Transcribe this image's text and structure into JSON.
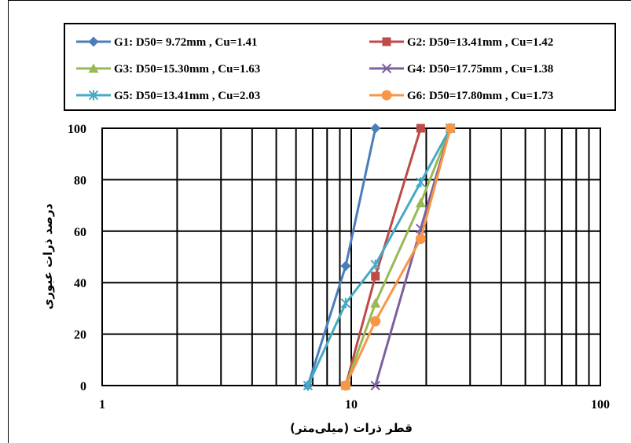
{
  "chart_data": {
    "type": "line",
    "x_scale": "log",
    "xlim": [
      1,
      100
    ],
    "ylim": [
      0,
      100
    ],
    "x_ticks": [
      "1",
      "10",
      "100"
    ],
    "y_ticks": [
      "0",
      "20",
      "40",
      "60",
      "80",
      "100"
    ],
    "xlabel": "قطر ذرات (میلی‌متر)",
    "ylabel": "درصد ذرات عبوری",
    "grid": true,
    "legend_position": "top",
    "series": [
      {
        "name": "G1: D50= 9.72mm , Cu=1.41",
        "color": "#4a7ebb",
        "marker": "diamond",
        "points": [
          [
            6.7,
            0
          ],
          [
            9.5,
            46.5
          ],
          [
            12.5,
            100
          ]
        ]
      },
      {
        "name": "G2: D50=13.41mm , Cu=1.42",
        "color": "#be4b48",
        "marker": "square",
        "points": [
          [
            9.5,
            0
          ],
          [
            12.5,
            42.5
          ],
          [
            19,
            100
          ]
        ]
      },
      {
        "name": "G3: D50=15.30mm , Cu=1.63",
        "color": "#98b954",
        "marker": "triangle",
        "points": [
          [
            9.5,
            0
          ],
          [
            12.5,
            32
          ],
          [
            19,
            71
          ],
          [
            25,
            100
          ]
        ]
      },
      {
        "name": "G4: D50=17.75mm , Cu=1.38",
        "color": "#7d60a0",
        "marker": "x",
        "points": [
          [
            12.5,
            0
          ],
          [
            19,
            61
          ],
          [
            25,
            100
          ]
        ]
      },
      {
        "name": "G5: D50=13.41mm , Cu=2.03",
        "color": "#46aac4",
        "marker": "star",
        "points": [
          [
            6.7,
            0
          ],
          [
            9.5,
            32
          ],
          [
            12.5,
            47
          ],
          [
            19,
            79
          ],
          [
            25,
            100
          ]
        ]
      },
      {
        "name": "G6: D50=17.80mm , Cu=1.73",
        "color": "#f79646",
        "marker": "circle",
        "points": [
          [
            9.5,
            0
          ],
          [
            12.5,
            25
          ],
          [
            19,
            57
          ],
          [
            25,
            100
          ]
        ]
      }
    ]
  }
}
